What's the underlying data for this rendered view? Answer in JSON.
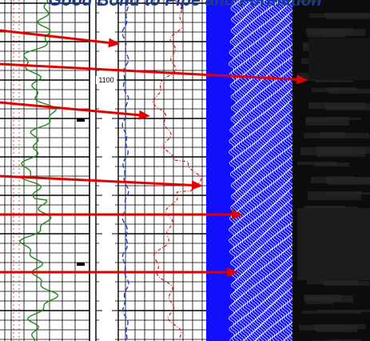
{
  "title": "Good Bond to Pipe and Formation",
  "depth_label": "1100",
  "colors": {
    "title": "#1f3b8c",
    "gamma_ray_curve": "#1a8c1a",
    "caliper_curve": "#1f3fd0",
    "amplitude_curve": "#e01010",
    "vdl_background": "#1010ff",
    "vdl_wave": "#ffffff",
    "cbl_image": "#0c0c0c",
    "arrows": "#e00000",
    "grid": "#000000"
  },
  "tracks": [
    {
      "name": "gamma-ray-track",
      "curve_color": "gamma_ray_curve"
    },
    {
      "name": "depth-track",
      "curve_color": "grid"
    },
    {
      "name": "amplitude-track",
      "curve_color": "amplitude_curve"
    },
    {
      "name": "vdl-track",
      "curve_color": "vdl_wave"
    },
    {
      "name": "cbl-image-track",
      "curve_color": "cbl_image"
    }
  ],
  "annotation_arrows": 6
}
